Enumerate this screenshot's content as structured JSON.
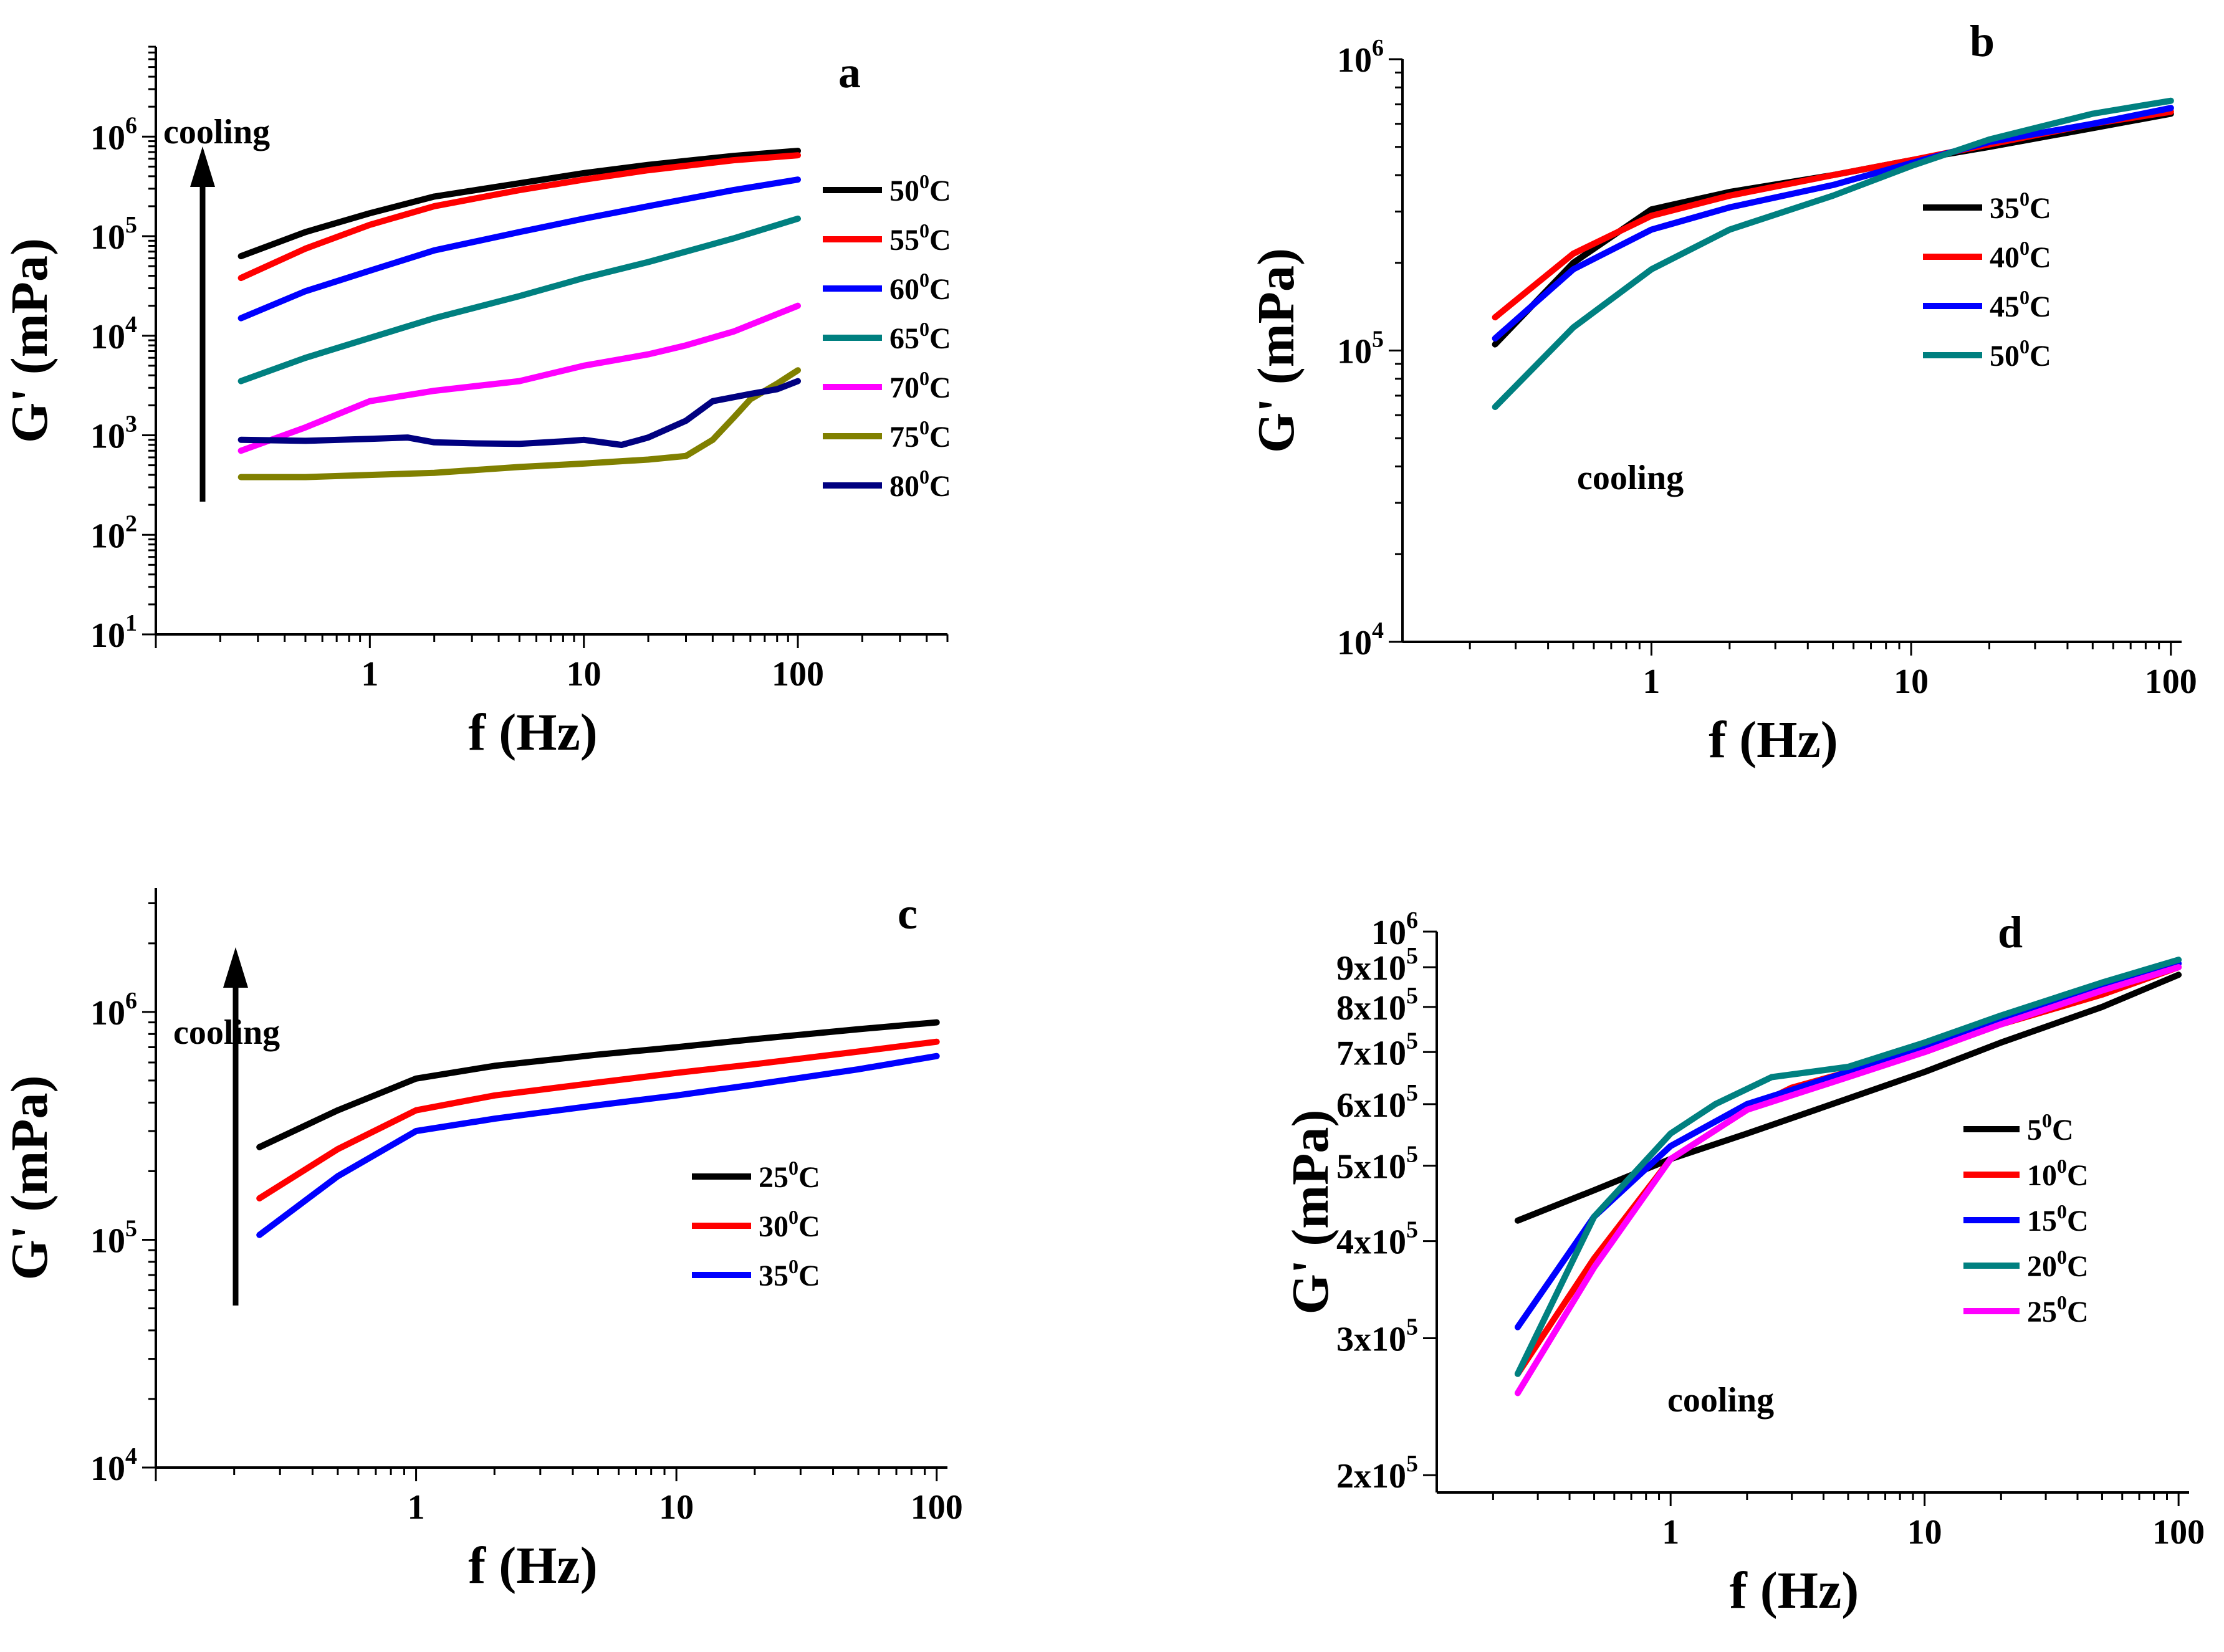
{
  "chart_data": [
    {
      "panel": "a",
      "type": "line",
      "xscale": "log",
      "yscale": "log",
      "xlabel": "f (Hz)",
      "ylabel": "G' (mPa)",
      "xlim": [
        0.1,
        500
      ],
      "ylim": [
        10,
        8000000
      ],
      "xticks": [
        {
          "v": 1,
          "label": "1"
        },
        {
          "v": 10,
          "label": "10"
        },
        {
          "v": 100,
          "label": "100"
        }
      ],
      "yticks": [
        {
          "v": 10,
          "base": "10",
          "exp": "1"
        },
        {
          "v": 100,
          "base": "10",
          "exp": "2"
        },
        {
          "v": 1000,
          "base": "10",
          "exp": "3"
        },
        {
          "v": 10000,
          "base": "10",
          "exp": "4"
        },
        {
          "v": 100000,
          "base": "10",
          "exp": "5"
        },
        {
          "v": 1000000,
          "base": "10",
          "exp": "6"
        }
      ],
      "annotation": "cooling",
      "annotation_arrow": "up",
      "legend_placement": "right",
      "series": [
        {
          "temp": "50",
          "unit": "C",
          "color": "#000000",
          "x": [
            0.25,
            0.5,
            1,
            2,
            5,
            10,
            20,
            50,
            100
          ],
          "y": [
            63000,
            110000,
            170000,
            250000,
            340000,
            430000,
            520000,
            640000,
            720000
          ]
        },
        {
          "temp": "55",
          "unit": "C",
          "color": "#ff0000",
          "x": [
            0.25,
            0.5,
            1,
            2,
            5,
            10,
            20,
            50,
            100
          ],
          "y": [
            38000,
            75000,
            130000,
            200000,
            290000,
            370000,
            460000,
            580000,
            650000
          ]
        },
        {
          "temp": "60",
          "unit": "C",
          "color": "#0000ff",
          "x": [
            0.25,
            0.5,
            1,
            2,
            5,
            10,
            20,
            50,
            100
          ],
          "y": [
            15000,
            28000,
            45000,
            72000,
            110000,
            150000,
            200000,
            290000,
            370000
          ]
        },
        {
          "temp": "65",
          "unit": "C",
          "color": "#008080",
          "x": [
            0.25,
            0.5,
            1,
            2,
            5,
            10,
            20,
            50,
            100
          ],
          "y": [
            3500,
            6000,
            9500,
            15000,
            25000,
            38000,
            55000,
            95000,
            150000
          ]
        },
        {
          "temp": "70",
          "unit": "C",
          "color": "#ff00ff",
          "x": [
            0.25,
            0.5,
            1,
            2,
            5,
            10,
            20,
            30,
            50,
            100
          ],
          "y": [
            700,
            1200,
            2200,
            2800,
            3500,
            5000,
            6500,
            8000,
            11000,
            20000
          ]
        },
        {
          "temp": "75",
          "unit": "C",
          "color": "#808000",
          "x": [
            0.25,
            0.5,
            1,
            2,
            5,
            10,
            20,
            30,
            40,
            50,
            60,
            80,
            100
          ],
          "y": [
            380,
            380,
            400,
            420,
            480,
            520,
            570,
            620,
            900,
            1500,
            2300,
            3300,
            4500
          ]
        },
        {
          "temp": "80",
          "unit": "C",
          "color": "#000080",
          "x": [
            0.25,
            0.5,
            1,
            1.5,
            2,
            3,
            5,
            8,
            10,
            15,
            20,
            30,
            40,
            60,
            80,
            100
          ],
          "y": [
            900,
            880,
            920,
            950,
            850,
            830,
            820,
            870,
            900,
            800,
            950,
            1400,
            2200,
            2600,
            2900,
            3500
          ]
        }
      ]
    },
    {
      "panel": "b",
      "type": "line",
      "xscale": "log",
      "yscale": "log",
      "xlabel": "f (Hz)",
      "ylabel": "G' (mPa)",
      "xlim": [
        0.11,
        110
      ],
      "ylim": [
        10000,
        1000000
      ],
      "xticks": [
        {
          "v": 1,
          "label": "1"
        },
        {
          "v": 10,
          "label": "10"
        },
        {
          "v": 100,
          "label": "100"
        }
      ],
      "yticks": [
        {
          "v": 10000,
          "base": "10",
          "exp": "4"
        },
        {
          "v": 100000,
          "base": "10",
          "exp": "5"
        },
        {
          "v": 1000000,
          "base": "10",
          "exp": "6"
        }
      ],
      "annotation": "cooling",
      "legend_placement": "center-right",
      "series": [
        {
          "temp": "35",
          "unit": "C",
          "color": "#000000",
          "x": [
            0.25,
            0.5,
            1,
            2,
            5,
            10,
            20,
            50,
            100
          ],
          "y": [
            105000,
            200000,
            305000,
            350000,
            400000,
            450000,
            500000,
            580000,
            650000
          ]
        },
        {
          "temp": "40",
          "unit": "C",
          "color": "#ff0000",
          "x": [
            0.25,
            0.5,
            1,
            2,
            5,
            10,
            20,
            50,
            100
          ],
          "y": [
            130000,
            215000,
            290000,
            340000,
            400000,
            450000,
            510000,
            600000,
            660000
          ]
        },
        {
          "temp": "45",
          "unit": "C",
          "color": "#0000ff",
          "x": [
            0.25,
            0.5,
            1,
            2,
            5,
            10,
            20,
            50,
            100
          ],
          "y": [
            110000,
            190000,
            260000,
            310000,
            370000,
            440000,
            520000,
            600000,
            680000
          ]
        },
        {
          "temp": "50",
          "unit": "C",
          "color": "#008080",
          "x": [
            0.25,
            0.5,
            1,
            2,
            5,
            10,
            20,
            50,
            100
          ],
          "y": [
            64000,
            120000,
            190000,
            260000,
            340000,
            430000,
            530000,
            650000,
            720000
          ]
        }
      ]
    },
    {
      "panel": "c",
      "type": "line",
      "xscale": "log",
      "yscale": "log",
      "xlabel": "f (Hz)",
      "ylabel": "G' (mPa)",
      "xlim": [
        0.1,
        110
      ],
      "ylim": [
        10000,
        3500000
      ],
      "xticks": [
        {
          "v": 1,
          "label": "1"
        },
        {
          "v": 10,
          "label": "10"
        },
        {
          "v": 100,
          "label": "100"
        }
      ],
      "yticks": [
        {
          "v": 10000,
          "base": "10",
          "exp": "4"
        },
        {
          "v": 100000,
          "base": "10",
          "exp": "5"
        },
        {
          "v": 1000000,
          "base": "10",
          "exp": "6"
        }
      ],
      "annotation": "cooling",
      "annotation_arrow": "up",
      "legend_placement": "center-right",
      "series": [
        {
          "temp": "25",
          "unit": "C",
          "color": "#000000",
          "x": [
            0.25,
            0.5,
            1,
            2,
            5,
            10,
            20,
            50,
            100
          ],
          "y": [
            255000,
            370000,
            510000,
            580000,
            650000,
            700000,
            760000,
            840000,
            900000
          ]
        },
        {
          "temp": "30",
          "unit": "C",
          "color": "#ff0000",
          "x": [
            0.25,
            0.5,
            1,
            2,
            5,
            10,
            20,
            50,
            100
          ],
          "y": [
            152000,
            250000,
            370000,
            430000,
            490000,
            540000,
            590000,
            670000,
            740000
          ]
        },
        {
          "temp": "35",
          "unit": "C",
          "color": "#0000ff",
          "x": [
            0.25,
            0.5,
            1,
            2,
            5,
            10,
            20,
            50,
            100
          ],
          "y": [
            105000,
            190000,
            300000,
            340000,
            390000,
            430000,
            480000,
            560000,
            640000
          ]
        }
      ]
    },
    {
      "panel": "d",
      "type": "line",
      "xscale": "log",
      "yscale": "log",
      "xlabel": "f (Hz)",
      "ylabel": "G' (mPa)",
      "xlim": [
        0.12,
        110
      ],
      "ylim": [
        190000,
        1000000
      ],
      "xticks": [
        {
          "v": 1,
          "label": "1"
        },
        {
          "v": 10,
          "label": "10"
        },
        {
          "v": 100,
          "label": "100"
        }
      ],
      "yticks": [
        {
          "v": 200000,
          "base": "2x10",
          "exp": "5"
        },
        {
          "v": 300000,
          "base": "3x10",
          "exp": "5"
        },
        {
          "v": 400000,
          "base": "4x10",
          "exp": "5"
        },
        {
          "v": 500000,
          "base": "5x10",
          "exp": "5"
        },
        {
          "v": 600000,
          "base": "6x10",
          "exp": "5"
        },
        {
          "v": 700000,
          "base": "7x10",
          "exp": "5"
        },
        {
          "v": 800000,
          "base": "8x10",
          "exp": "5"
        },
        {
          "v": 900000,
          "base": "9x10",
          "exp": "5"
        },
        {
          "v": 1000000,
          "base": "10",
          "exp": "6"
        }
      ],
      "annotation": "cooling",
      "legend_placement": "center-right",
      "series": [
        {
          "temp": "5",
          "unit": "C",
          "color": "#000000",
          "x": [
            0.25,
            0.5,
            1,
            2,
            5,
            10,
            20,
            50,
            100
          ],
          "y": [
            425000,
            465000,
            510000,
            550000,
            610000,
            660000,
            720000,
            800000,
            880000
          ]
        },
        {
          "temp": "10",
          "unit": "C",
          "color": "#ff0000",
          "x": [
            0.25,
            0.5,
            1,
            2,
            3,
            5,
            10,
            20,
            50,
            100
          ],
          "y": [
            270000,
            380000,
            510000,
            590000,
            630000,
            660000,
            700000,
            760000,
            830000,
            900000
          ]
        },
        {
          "temp": "15",
          "unit": "C",
          "color": "#0000ff",
          "x": [
            0.25,
            0.5,
            1,
            2,
            5,
            10,
            20,
            50,
            100
          ],
          "y": [
            310000,
            430000,
            530000,
            600000,
            660000,
            710000,
            770000,
            850000,
            910000
          ]
        },
        {
          "temp": "20",
          "unit": "C",
          "color": "#008080",
          "x": [
            0.25,
            0.5,
            1,
            1.5,
            2.5,
            5,
            10,
            20,
            50,
            100
          ],
          "y": [
            270000,
            430000,
            550000,
            600000,
            650000,
            670000,
            720000,
            780000,
            860000,
            920000
          ]
        },
        {
          "temp": "25",
          "unit": "C",
          "color": "#ff00ff",
          "x": [
            0.25,
            0.5,
            1,
            2,
            5,
            10,
            20,
            50,
            100
          ],
          "y": [
            255000,
            370000,
            510000,
            590000,
            650000,
            700000,
            760000,
            840000,
            900000
          ]
        }
      ]
    }
  ]
}
